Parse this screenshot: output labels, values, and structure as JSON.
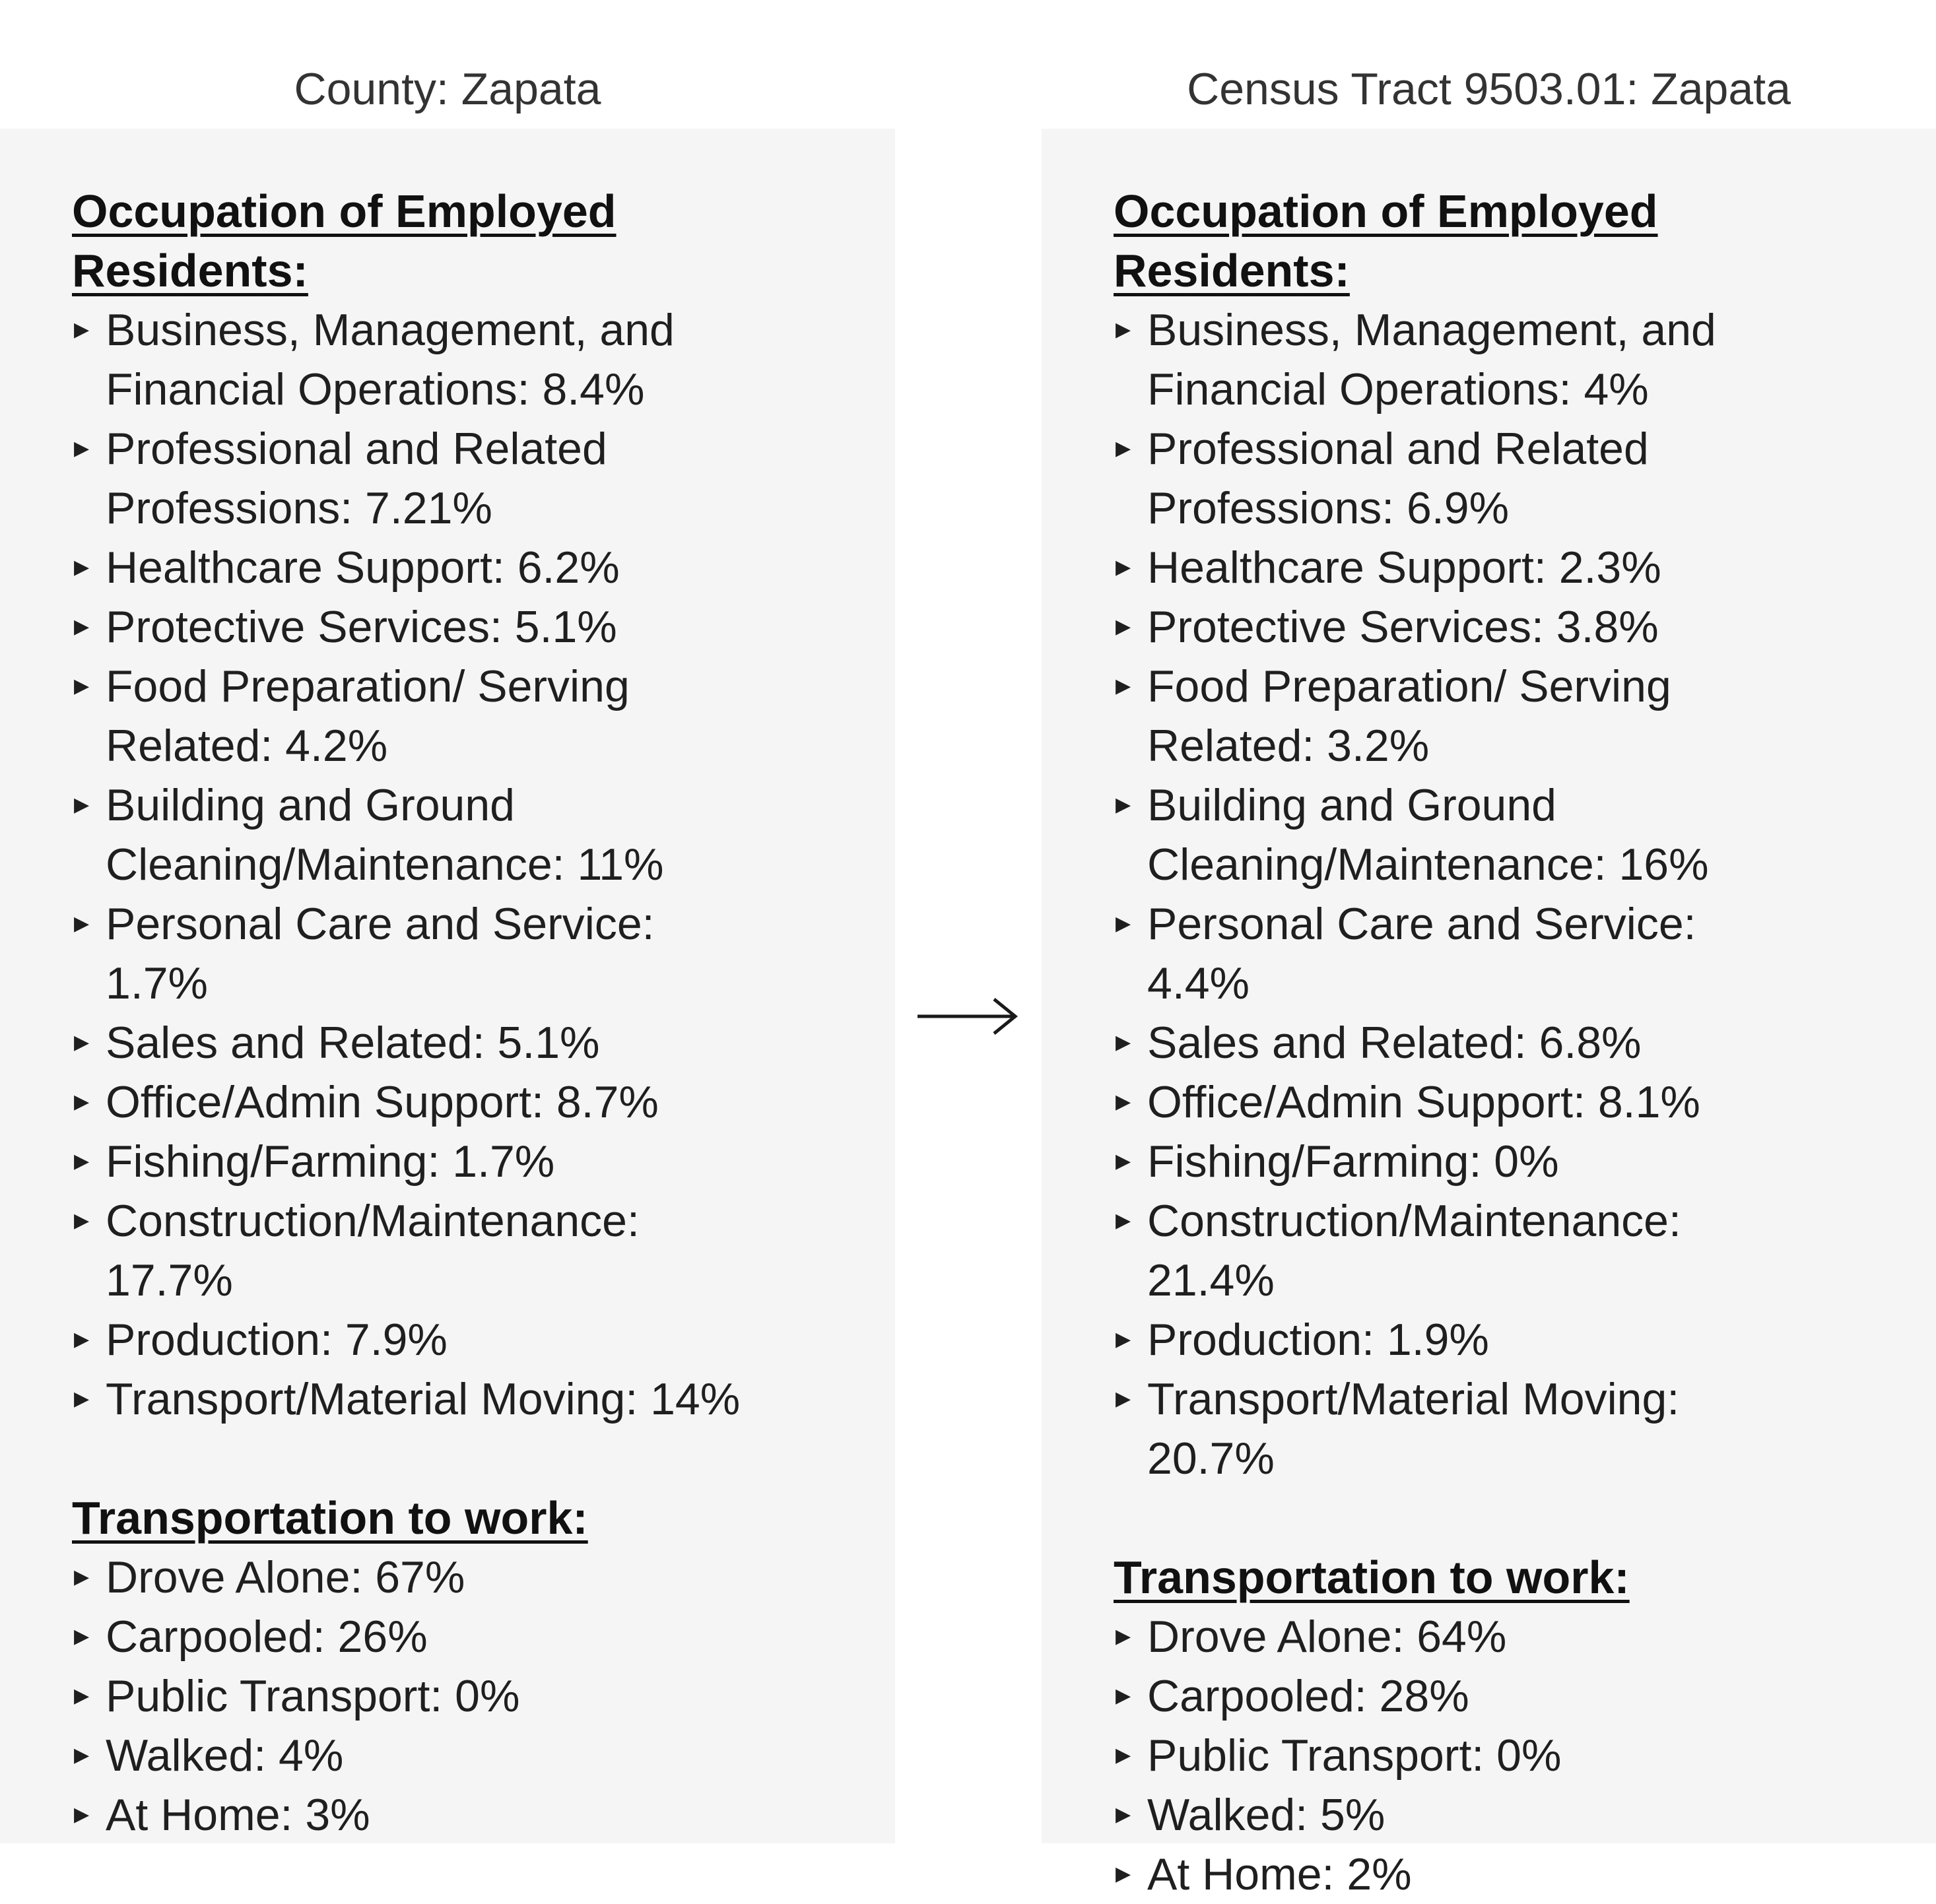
{
  "left": {
    "title": "County: Zapata",
    "occupation_heading": "Occupation of Employed Residents:",
    "occupations": [
      "Business, Management, and Financial Operations: 8.4%",
      "Professional and Related Professions: 7.21%",
      "Healthcare Support: 6.2%",
      "Protective Services: 5.1%",
      "Food Preparation/ Serving Related: 4.2%",
      "Building and Ground Cleaning/Maintenance: 11%",
      "Personal Care and Service: 1.7%",
      "Sales and Related: 5.1%",
      "Office/Admin Support: 8.7%",
      "Fishing/Farming: 1.7%",
      "Construction/Maintenance: 17.7%",
      "Production: 7.9%",
      "Transport/Material Moving: 14%"
    ],
    "transport_heading": "Transportation to work:",
    "transport": [
      "Drove Alone: 67%",
      "Carpooled: 26%",
      "Public Transport: 0%",
      "Walked: 4%",
      "At Home: 3%"
    ]
  },
  "right": {
    "title": "Census Tract 9503.01: Zapata",
    "occupation_heading": "Occupation of Employed Residents:",
    "occupations": [
      "Business, Management, and Financial Operations: 4%",
      "Professional and Related Professions: 6.9%",
      "Healthcare Support: 2.3%",
      "Protective Services: 3.8%",
      "Food Preparation/ Serving Related: 3.2%",
      "Building and Ground Cleaning/Maintenance: 16%",
      "Personal Care and Service: 4.4%",
      "Sales and Related: 6.8%",
      "Office/Admin Support: 8.1%",
      "Fishing/Farming: 0%",
      "Construction/Maintenance: 21.4%",
      "Production: 1.9%",
      "Transport/Material Moving: 20.7%"
    ],
    "transport_heading": "Transportation to work:",
    "transport": [
      "Drove Alone: 64%",
      "Carpooled: 28%",
      "Public Transport: 0%",
      "Walked: 5%",
      "At Home: 2%"
    ]
  },
  "arrow_icon": "right-arrow-icon",
  "colors": {
    "panel_background": "#f5f5f5",
    "text": "#1f1f1f",
    "heading": "#111111"
  }
}
